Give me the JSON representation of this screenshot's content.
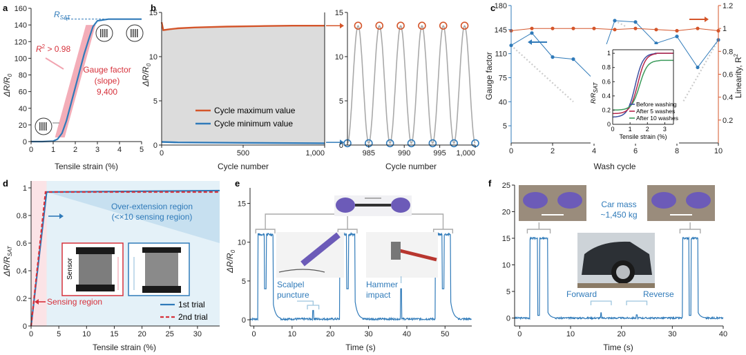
{
  "colors": {
    "blue": "#2f7ab9",
    "orange": "#d4552a",
    "red": "#d6303a",
    "pink": "#f2a4b0",
    "gray": "#a9a9a9",
    "light_blue_fill": "#d6e9f5",
    "sensing_fill": "#fbe3e6"
  },
  "chart_data": [
    {
      "panel": "a",
      "type": "line",
      "xlabel": "Tensile strain (%)",
      "ylabel": "ΔR/R0",
      "xlim": [
        0,
        5
      ],
      "ylim": [
        0,
        160
      ],
      "xticks": [
        0,
        1,
        2,
        3,
        4,
        5
      ],
      "yticks": [
        0,
        20,
        40,
        60,
        80,
        100,
        120,
        140,
        160
      ],
      "series": [
        {
          "x": [
            0,
            0.5,
            1.0,
            1.2,
            1.4,
            1.6,
            1.8,
            2.0,
            2.2,
            2.4,
            2.6,
            2.8,
            3.0,
            3.5,
            4.0,
            4.5,
            5.0
          ],
          "y": [
            0,
            0,
            0.5,
            3,
            10,
            25,
            45,
            65,
            85,
            105,
            122,
            138,
            145,
            147,
            147,
            147,
            147
          ]
        }
      ],
      "fit_band": {
        "x": [
          1.3,
          2.7
        ],
        "y": [
          5,
          140
        ]
      },
      "annotations": {
        "rsat": "R",
        "rsat_sub": "SAT",
        "r2": "R",
        "r2_rest": " > 0.98",
        "gf_line1": "Gauge factor",
        "gf_line2": "(slope)",
        "gf_line3": "9,400"
      }
    },
    {
      "panel": "b-left",
      "type": "line",
      "xlabel": "Cycle number",
      "ylabel": "ΔR/R0",
      "xlim": [
        0,
        1000
      ],
      "ylim": [
        0,
        15
      ],
      "xticks": [
        "0",
        "500",
        "1,000"
      ],
      "yticks": [
        0,
        5,
        10,
        15
      ],
      "series": [
        {
          "name": "Cycle maximum value",
          "x": [
            0,
            10,
            50,
            100,
            200,
            400,
            600,
            800,
            1000
          ],
          "y": [
            13.9,
            13.0,
            13.1,
            13.2,
            13.3,
            13.4,
            13.45,
            13.5,
            13.5
          ]
        },
        {
          "name": "Cycle minimum value",
          "x": [
            0,
            100,
            500,
            1000
          ],
          "y": [
            0.35,
            0.3,
            0.25,
            0.2
          ]
        }
      ]
    },
    {
      "panel": "b-right",
      "type": "line",
      "xlabel": "Cycle number",
      "xlim": [
        982,
        1000
      ],
      "ylim": [
        0,
        15
      ],
      "xticks": [
        "985",
        "990",
        "995",
        "1,000"
      ],
      "yticks": [
        0,
        5,
        10,
        15
      ],
      "peak_cycles": [
        983.5,
        986.5,
        989.5,
        992.5,
        995.5,
        998.5
      ],
      "min_cycles": [
        982,
        985,
        988,
        991,
        994,
        997,
        1000
      ],
      "peak_value": 13.5,
      "min_value": 0.2
    },
    {
      "panel": "c",
      "type": "line",
      "xlabel": "Wash cycle",
      "ylabel": "Gauge factor",
      "ylabel_right": "Linearity, R",
      "xlim": [
        0,
        10
      ],
      "ylim": [
        -20,
        180
      ],
      "ylim_right": [
        0,
        1.2
      ],
      "xticks": [
        0,
        2,
        4,
        6,
        8,
        10
      ],
      "yticks": [
        5,
        40,
        75,
        110,
        145,
        180
      ],
      "yticks_right": [
        "0.2",
        "0.4",
        "0.6",
        "0.8",
        "1",
        "1.2"
      ],
      "series": [
        {
          "x": [
            0,
            1,
            2,
            3,
            4,
            5,
            6,
            7,
            8,
            9,
            10
          ],
          "y": [
            122,
            140,
            105,
            102,
            72,
            158,
            156,
            125,
            135,
            90,
            130
          ]
        },
        {
          "x": [
            0,
            1,
            2,
            3,
            4,
            5,
            6,
            7,
            8,
            9,
            10
          ],
          "y": [
            0.98,
            1.0,
            1.0,
            1.0,
            1.0,
            0.99,
            1.0,
            0.99,
            0.98,
            1.0,
            0.98
          ]
        }
      ],
      "inset": {
        "xlabel": "Tensile strain (%)",
        "ylabel": "R/R",
        "ylabel_sub": "SAT",
        "xticks": [
          0,
          1,
          2,
          3
        ],
        "yticks": [
          "0",
          "0.2",
          "0.4",
          "0.6",
          "0.8",
          "1"
        ],
        "legend": [
          "Before washing",
          "After 5 washes",
          "After 10 washes"
        ],
        "legend_colors": [
          "#3b4fa0",
          "#b5264a",
          "#3a9a5a"
        ]
      }
    },
    {
      "panel": "d",
      "type": "line",
      "xlabel": "Tensile strain (%)",
      "ylabel": "ΔR/R",
      "ylabel_sub": "SAT",
      "xlim": [
        0,
        34
      ],
      "ylim": [
        0,
        1.05
      ],
      "xticks": [
        0,
        5,
        10,
        15,
        20,
        25,
        30
      ],
      "yticks": [
        "0",
        "0.2",
        "0.4",
        "0.6",
        "0.8",
        "1"
      ],
      "series": [
        {
          "name": "1st trial",
          "x": [
            0,
            2.8,
            34
          ],
          "y": [
            0,
            0.97,
            0.98
          ]
        },
        {
          "name": "2nd trial",
          "x": [
            0,
            2.6,
            34
          ],
          "y": [
            0,
            0.97,
            0.97
          ]
        }
      ],
      "annotations": {
        "sensing": "Sensing region",
        "over1": "Over-extension region",
        "over2": "(<×10 sensing region)",
        "sensor": "Sensor"
      }
    },
    {
      "panel": "e",
      "type": "line",
      "xlabel": "Time (s)",
      "ylabel": "ΔR/R0",
      "xlim": [
        -1,
        57
      ],
      "ylim": [
        -0.8,
        17
      ],
      "xticks": [
        0,
        10,
        20,
        30,
        40,
        50
      ],
      "yticks": [
        0,
        5,
        10,
        15
      ],
      "pulses": [
        [
          1,
          5
        ],
        [
          22.5,
          26.5
        ],
        [
          47.5,
          51.5
        ]
      ],
      "pulse_value": 11,
      "spikes": [
        [
          15.5,
          1.2
        ],
        [
          38.5,
          4
        ]
      ],
      "annotations": {
        "scalpel1": "Scalpel",
        "scalpel2": "puncture",
        "hammer1": "Hammer",
        "hammer2": "impact"
      }
    },
    {
      "panel": "f",
      "type": "line",
      "xlabel": "Time (s)",
      "xlim": [
        -1,
        40
      ],
      "ylim": [
        -1.5,
        25
      ],
      "xticks": [
        0,
        10,
        20,
        30,
        40
      ],
      "yticks": [
        0,
        5,
        10,
        15,
        20,
        25
      ],
      "pulses": [
        [
          2,
          5.5
        ],
        [
          32,
          35
        ]
      ],
      "pulse_value": 15,
      "annotations": {
        "car1": "Car mass",
        "car2": "~1,450 kg",
        "forward": "Forward",
        "reverse": "Reverse"
      }
    }
  ]
}
